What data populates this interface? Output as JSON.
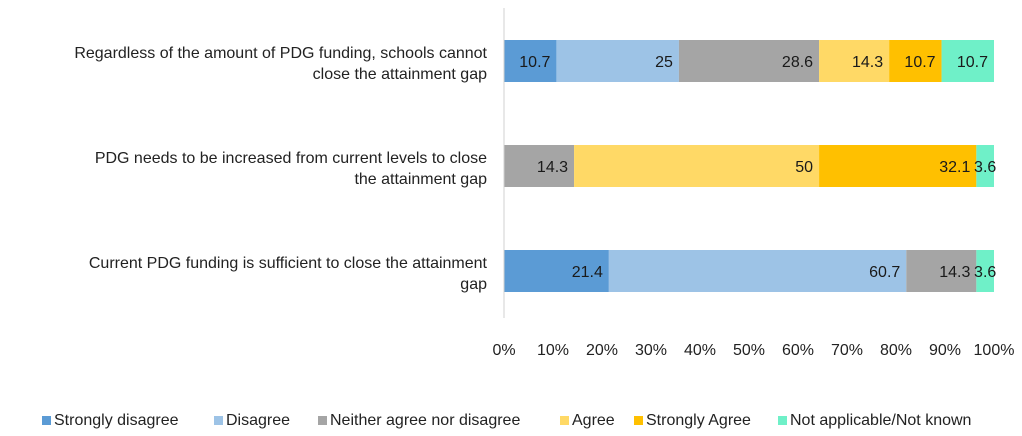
{
  "chart_data": {
    "type": "bar",
    "orientation": "horizontal",
    "stacked": "percent",
    "categories": [
      [
        "Regardless of the amount of PDG funding, schools cannot",
        "close the attainment gap"
      ],
      [
        "PDG needs to be increased from current levels to close",
        "the attainment gap"
      ],
      [
        "Current PDG funding is sufficient to close the attainment",
        "gap"
      ]
    ],
    "series": [
      {
        "name": "Strongly disagree",
        "color": "#5B9BD5",
        "values": [
          10.7,
          0,
          21.4
        ],
        "labels": [
          "10.7",
          "",
          "21.4"
        ]
      },
      {
        "name": "Disagree",
        "color": "#9DC3E6",
        "values": [
          25,
          0,
          60.7
        ],
        "labels": [
          "25",
          "",
          "60.7"
        ]
      },
      {
        "name": "Neither agree nor disagree",
        "color": "#A5A5A5",
        "values": [
          28.6,
          14.3,
          14.3
        ],
        "labels": [
          "28.6",
          "14.3",
          "14.3"
        ]
      },
      {
        "name": "Agree",
        "color": "#FFD966",
        "values": [
          14.3,
          50,
          0
        ],
        "labels": [
          "14.3",
          "50",
          ""
        ]
      },
      {
        "name": "Strongly Agree",
        "color": "#FFC000",
        "values": [
          10.7,
          32.1,
          0
        ],
        "labels": [
          "10.7",
          "32.1",
          ""
        ]
      },
      {
        "name": "Not applicable/Not known",
        "color": "#6FF0C8",
        "values": [
          10.7,
          3.6,
          3.6
        ],
        "labels": [
          "10.7",
          "3.6",
          "3.6"
        ]
      }
    ],
    "x_ticks": [
      "0%",
      "10%",
      "20%",
      "30%",
      "40%",
      "50%",
      "60%",
      "70%",
      "80%",
      "90%",
      "100%"
    ],
    "xlim": [
      0,
      100
    ],
    "grid": false,
    "legend": "bottom"
  }
}
